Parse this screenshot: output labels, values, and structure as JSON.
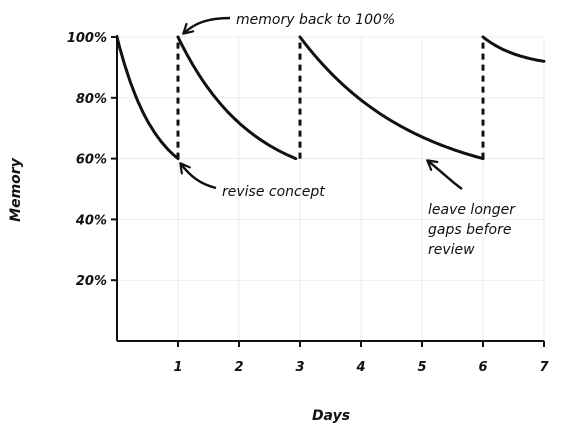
{
  "chart_data": {
    "type": "line",
    "title": "",
    "xlabel": "Days",
    "ylabel": "Memory",
    "xlim": [
      0,
      7
    ],
    "ylim": [
      0,
      100
    ],
    "x_ticks": [
      1,
      2,
      3,
      4,
      5,
      6,
      7
    ],
    "x_tick_labels": [
      "1",
      "2",
      "3",
      "4",
      "5",
      "6",
      "7"
    ],
    "y_ticks": [
      20,
      40,
      60,
      80,
      100
    ],
    "y_tick_labels": [
      "20%",
      "40%",
      "60%",
      "80%",
      "100%"
    ],
    "grid": true,
    "series": [
      {
        "segments": [
          {
            "start": 0,
            "end": 1,
            "from": 100,
            "to": 60
          },
          {
            "start": 1,
            "end": 2.93,
            "from": 100,
            "to": 60
          },
          {
            "start": 3,
            "end": 6,
            "from": 100,
            "to": 60
          },
          {
            "start": 6,
            "end": 7,
            "from": 100,
            "to": 92
          }
        ],
        "review_points": [
          1,
          3,
          6
        ]
      }
    ],
    "annotations": [
      {
        "text": "memory back to 100%",
        "x": 1,
        "y": 100
      },
      {
        "text": "revise concept",
        "x": 1,
        "y": 60
      },
      {
        "text": "leave longer gaps before review",
        "x": 5,
        "y": 61
      }
    ]
  }
}
